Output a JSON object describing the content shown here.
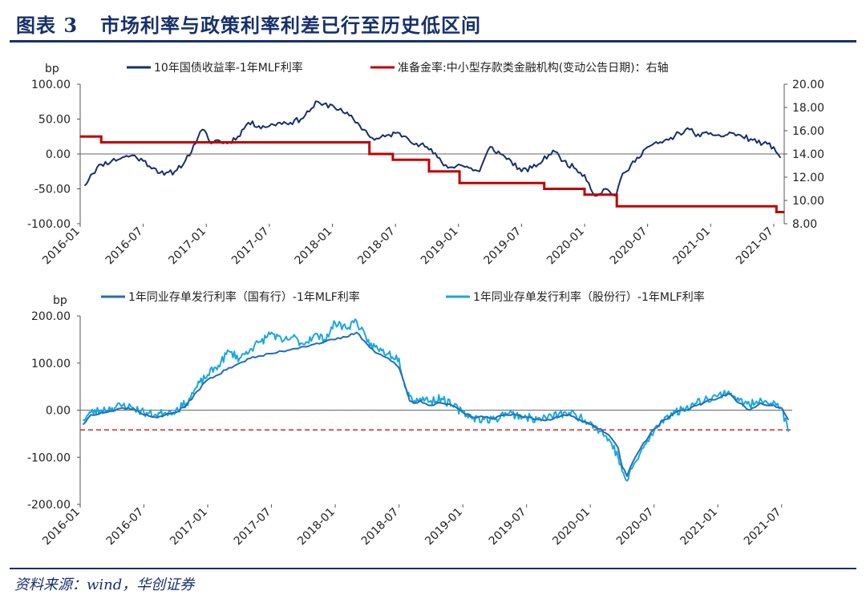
{
  "figure": {
    "number_label": "图表 3",
    "title": "市场利率与政策利率利差已行至历史低区间",
    "source": "资料来源：wind，华创证券"
  },
  "chart_data": [
    {
      "type": "line",
      "ylabel_left": "bp",
      "ylim_left": [
        -100,
        100
      ],
      "yticks_left": [
        "100.00",
        "50.00",
        "0.00",
        "-50.00",
        "-100.00"
      ],
      "ylim_right": [
        8,
        20
      ],
      "yticks_right": [
        "20.00",
        "18.00",
        "16.00",
        "14.00",
        "12.00",
        "10.00",
        "8.00"
      ],
      "xlim": [
        "2016-01",
        "2021-08"
      ],
      "xticks": [
        "2016-01",
        "2016-07",
        "2017-01",
        "2017-07",
        "2018-01",
        "2018-07",
        "2019-01",
        "2019-07",
        "2020-01",
        "2020-07",
        "2021-01",
        "2021-07"
      ],
      "legend": "top",
      "zero_line": true,
      "series": [
        {
          "name": "10年国债收益率-1年MLF利率",
          "axis": "left",
          "color": "#17306b",
          "x": [
            "2016-01-15",
            "2016-02-01",
            "2016-03-01",
            "2016-04-01",
            "2016-05-01",
            "2016-06-01",
            "2016-07-01",
            "2016-08-01",
            "2016-09-01",
            "2016-10-01",
            "2016-11-01",
            "2016-12-01",
            "2016-12-20",
            "2017-01-01",
            "2017-01-15",
            "2017-02-01",
            "2017-03-01",
            "2017-04-01",
            "2017-05-01",
            "2017-06-01",
            "2017-07-01",
            "2017-08-01",
            "2017-09-01",
            "2017-10-01",
            "2017-11-01",
            "2017-11-20",
            "2017-12-01",
            "2018-01-01",
            "2018-02-01",
            "2018-03-01",
            "2018-04-01",
            "2018-05-01",
            "2018-06-01",
            "2018-07-01",
            "2018-08-01",
            "2018-09-01",
            "2018-10-01",
            "2018-11-01",
            "2018-12-01",
            "2019-01-01",
            "2019-02-01",
            "2019-03-01",
            "2019-04-01",
            "2019-05-01",
            "2019-06-01",
            "2019-07-01",
            "2019-08-01",
            "2019-09-01",
            "2019-10-01",
            "2019-11-01",
            "2019-12-01",
            "2020-01-01",
            "2020-02-01",
            "2020-03-01",
            "2020-04-01",
            "2020-04-15",
            "2020-05-01",
            "2020-06-01",
            "2020-07-01",
            "2020-08-01",
            "2020-09-01",
            "2020-10-01",
            "2020-11-01",
            "2020-12-01",
            "2021-01-01",
            "2021-02-01",
            "2021-03-01",
            "2021-04-01",
            "2021-05-01",
            "2021-06-01",
            "2021-07-01",
            "2021-07-20"
          ],
          "values": [
            -45,
            -30,
            -15,
            -10,
            -5,
            -2,
            -10,
            -20,
            -30,
            -25,
            -10,
            15,
            35,
            30,
            15,
            20,
            15,
            25,
            45,
            40,
            40,
            45,
            45,
            50,
            65,
            75,
            70,
            70,
            60,
            50,
            35,
            20,
            25,
            30,
            25,
            15,
            10,
            -5,
            -20,
            -15,
            -20,
            -25,
            10,
            0,
            -10,
            -25,
            -20,
            -10,
            5,
            -10,
            -20,
            -30,
            -60,
            -50,
            -60,
            -35,
            -25,
            -5,
            10,
            15,
            20,
            30,
            35,
            25,
            30,
            25,
            30,
            25,
            20,
            15,
            10,
            -5
          ]
        },
        {
          "name": "准备金率:中小型存款类金融机构(变动公告日期)：右轴",
          "axis": "right",
          "step": true,
          "color": "#c00000",
          "x": [
            "2016-01-01",
            "2016-03-01",
            "2018-04-17",
            "2018-06-24",
            "2018-10-07",
            "2019-01-04",
            "2019-09-06",
            "2020-01-01",
            "2020-04-03",
            "2021-07-09",
            "2021-08-01"
          ],
          "values": [
            15.5,
            15.0,
            14.0,
            13.5,
            12.5,
            11.5,
            11.0,
            10.5,
            9.5,
            9.0,
            9.0
          ]
        }
      ]
    },
    {
      "type": "line",
      "ylabel": "bp",
      "ylim": [
        -200,
        200
      ],
      "yticks": [
        "200.00",
        "100.00",
        "0.00",
        "-100.00",
        "-200.00"
      ],
      "xlim": [
        "2016-01",
        "2021-08"
      ],
      "xticks": [
        "2016-01",
        "2016-07",
        "2017-01",
        "2017-07",
        "2018-01",
        "2018-07",
        "2019-01",
        "2019-07",
        "2020-01",
        "2020-07",
        "2021-01",
        "2021-07"
      ],
      "legend": "top",
      "reference_line": {
        "value": -42,
        "style": "dashed",
        "color": "#d62728"
      },
      "series": [
        {
          "name": "1年同业存单发行利率（国有行）-1年MLF利率",
          "color": "#1f6fb8",
          "x": [
            "2016-01-10",
            "2016-02-01",
            "2016-03-01",
            "2016-04-01",
            "2016-05-01",
            "2016-06-01",
            "2016-07-01",
            "2016-08-01",
            "2016-09-01",
            "2016-10-01",
            "2016-11-01",
            "2016-12-01",
            "2017-01-01",
            "2017-02-01",
            "2017-03-01",
            "2017-04-01",
            "2017-05-01",
            "2017-06-01",
            "2017-07-01",
            "2017-08-01",
            "2017-09-01",
            "2017-10-01",
            "2017-11-01",
            "2017-12-01",
            "2018-01-01",
            "2018-02-01",
            "2018-03-01",
            "2018-04-01",
            "2018-05-01",
            "2018-06-01",
            "2018-07-01",
            "2018-07-15",
            "2018-08-01",
            "2018-08-15",
            "2018-09-01",
            "2018-10-01",
            "2018-11-01",
            "2018-12-01",
            "2019-01-01",
            "2019-02-01",
            "2019-03-01",
            "2019-04-01",
            "2019-05-01",
            "2019-06-01",
            "2019-07-01",
            "2019-08-01",
            "2019-09-01",
            "2019-10-01",
            "2019-11-01",
            "2019-12-01",
            "2020-01-01",
            "2020-02-01",
            "2020-03-01",
            "2020-03-20",
            "2020-04-01",
            "2020-04-15",
            "2020-05-01",
            "2020-06-01",
            "2020-07-01",
            "2020-08-01",
            "2020-09-01",
            "2020-10-01",
            "2020-11-01",
            "2020-12-01",
            "2021-01-01",
            "2021-02-01",
            "2021-03-01",
            "2021-04-01",
            "2021-05-01",
            "2021-06-01",
            "2021-07-01",
            "2021-07-20"
          ],
          "values": [
            -30,
            -10,
            -5,
            -2,
            5,
            3,
            -10,
            -15,
            -10,
            -5,
            10,
            40,
            65,
            75,
            90,
            100,
            110,
            115,
            120,
            125,
            130,
            135,
            140,
            145,
            150,
            155,
            165,
            140,
            120,
            110,
            90,
            60,
            20,
            15,
            20,
            10,
            15,
            10,
            -5,
            -15,
            -15,
            -18,
            -10,
            -10,
            -15,
            -20,
            -20,
            -15,
            -10,
            -20,
            -30,
            -40,
            -60,
            -80,
            -120,
            -140,
            -110,
            -70,
            -40,
            -20,
            -5,
            0,
            10,
            20,
            25,
            35,
            15,
            0,
            15,
            10,
            5,
            -20
          ]
        },
        {
          "name": "1年同业存单发行利率（股份行）-1年MLF利率",
          "color": "#1aa8e0",
          "x": [
            "2016-01-10",
            "2016-02-01",
            "2016-03-01",
            "2016-04-01",
            "2016-05-01",
            "2016-06-01",
            "2016-07-01",
            "2016-08-01",
            "2016-09-01",
            "2016-10-01",
            "2016-11-01",
            "2016-12-01",
            "2017-01-01",
            "2017-02-01",
            "2017-03-01",
            "2017-04-01",
            "2017-05-01",
            "2017-06-01",
            "2017-07-01",
            "2017-08-01",
            "2017-09-01",
            "2017-10-01",
            "2017-11-01",
            "2017-12-01",
            "2018-01-01",
            "2018-02-01",
            "2018-03-01",
            "2018-04-01",
            "2018-05-01",
            "2018-06-01",
            "2018-07-01",
            "2018-07-15",
            "2018-08-01",
            "2018-08-15",
            "2018-09-01",
            "2018-10-01",
            "2018-11-01",
            "2018-12-01",
            "2019-01-01",
            "2019-02-01",
            "2019-03-01",
            "2019-04-01",
            "2019-05-01",
            "2019-06-01",
            "2019-07-01",
            "2019-08-01",
            "2019-09-01",
            "2019-10-01",
            "2019-11-01",
            "2019-12-01",
            "2020-01-01",
            "2020-02-01",
            "2020-03-01",
            "2020-03-20",
            "2020-04-01",
            "2020-04-15",
            "2020-05-01",
            "2020-06-01",
            "2020-07-01",
            "2020-08-01",
            "2020-09-01",
            "2020-10-01",
            "2020-11-01",
            "2020-12-01",
            "2021-01-01",
            "2021-02-01",
            "2021-03-01",
            "2021-04-01",
            "2021-05-01",
            "2021-06-01",
            "2021-07-01",
            "2021-07-20"
          ],
          "values": [
            -20,
            -5,
            0,
            5,
            10,
            5,
            -5,
            -10,
            -5,
            0,
            15,
            50,
            75,
            95,
            125,
            110,
            130,
            145,
            165,
            145,
            155,
            140,
            160,
            150,
            185,
            175,
            190,
            145,
            130,
            120,
            110,
            60,
            30,
            20,
            25,
            20,
            25,
            10,
            -5,
            -15,
            -20,
            -20,
            -5,
            -10,
            -15,
            -20,
            -15,
            -10,
            -5,
            -15,
            -25,
            -45,
            -70,
            -100,
            -130,
            -150,
            -120,
            -80,
            -45,
            -15,
            -5,
            5,
            15,
            25,
            30,
            40,
            20,
            10,
            25,
            15,
            5,
            -45
          ]
        }
      ]
    }
  ]
}
